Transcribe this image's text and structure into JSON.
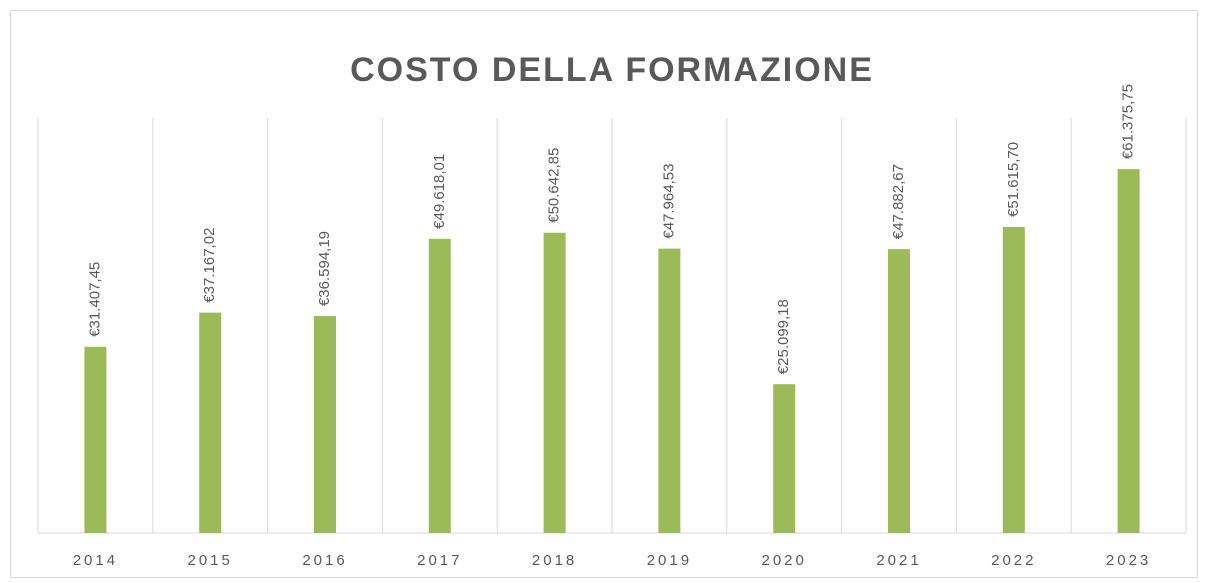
{
  "chart_data": {
    "type": "bar",
    "title": "COSTO DELLA FORMAZIONE",
    "categories": [
      "2014",
      "2015",
      "2016",
      "2017",
      "2018",
      "2019",
      "2020",
      "2021",
      "2022",
      "2023"
    ],
    "values": [
      31407.45,
      37167.02,
      36594.19,
      49618.01,
      50642.85,
      47964.53,
      25099.18,
      47882.67,
      51615.7,
      61375.75
    ],
    "value_labels": [
      "€31.407,45",
      "€37.167,02",
      "€36.594,19",
      "€49.618,01",
      "€50.642,85",
      "€47.964,53",
      "€25.099,18",
      "€47.882,67",
      "€51.615,70",
      "€61.375,75"
    ],
    "color": "#9bbb59",
    "ylim": [
      0,
      70000
    ]
  }
}
